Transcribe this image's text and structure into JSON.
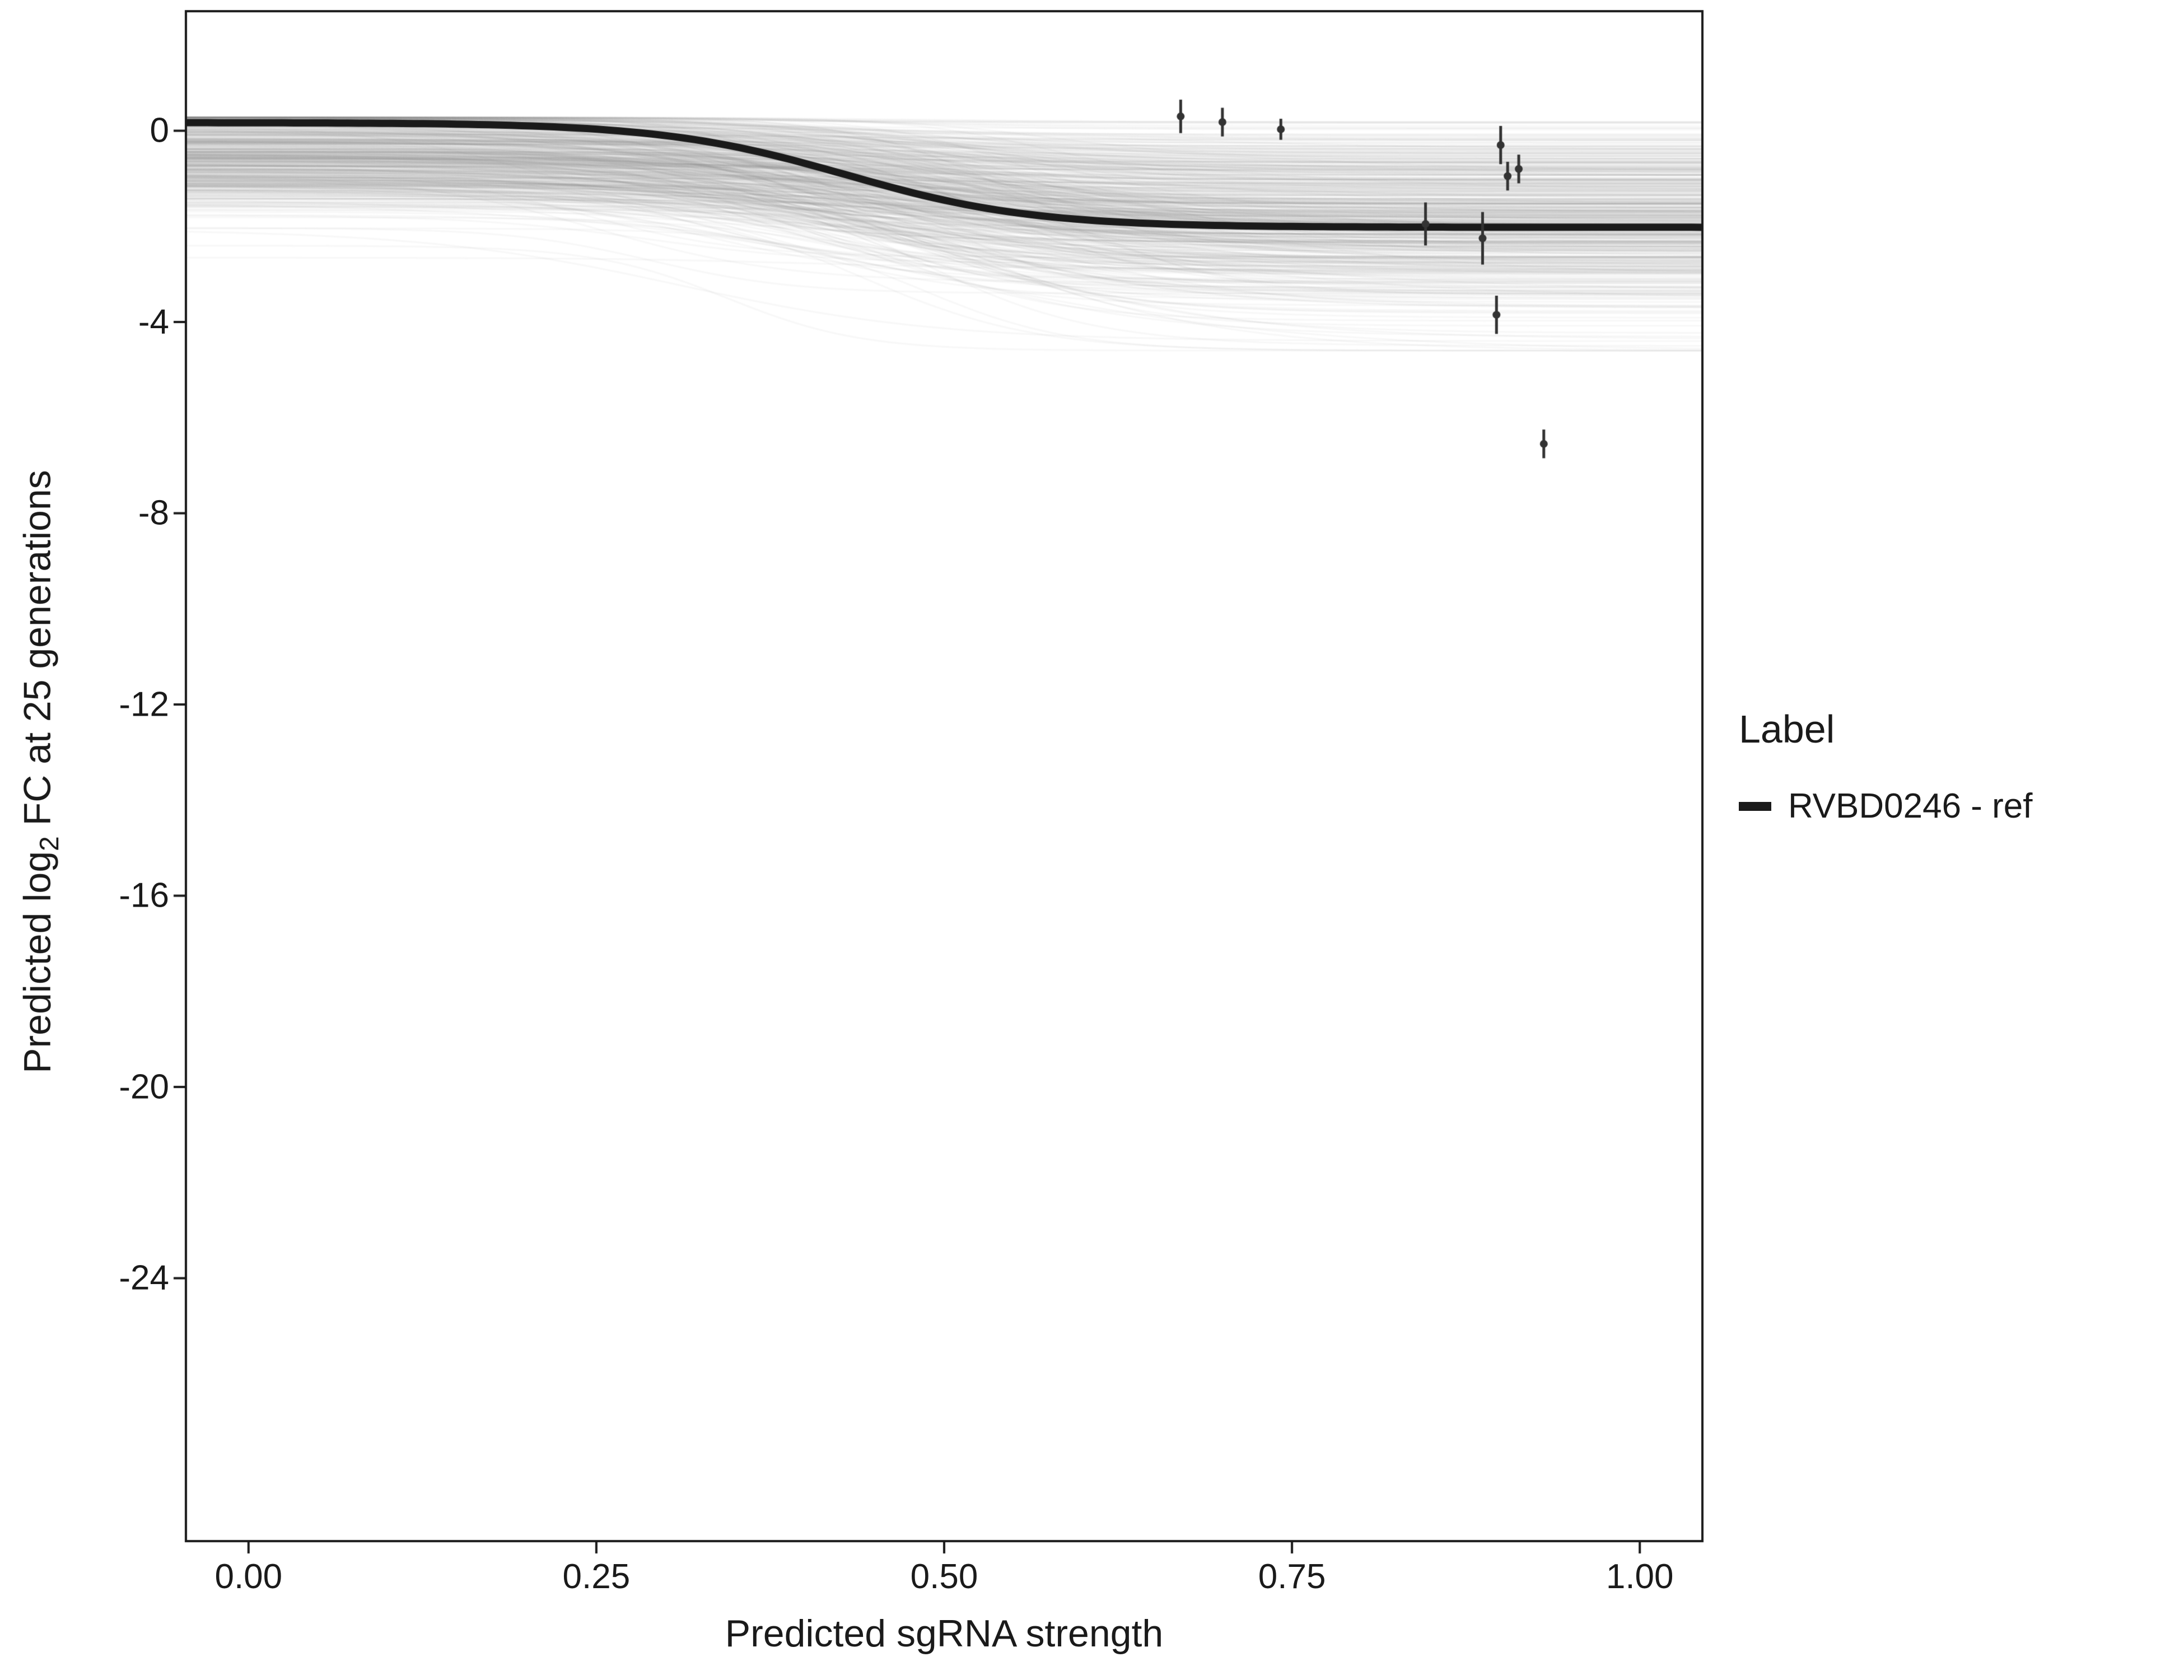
{
  "chart_data": {
    "type": "line",
    "title": "",
    "xlabel": "Predicted sgRNA strength",
    "ylabel": "Predicted log2 FC at 25 generations",
    "ylabel_parts": {
      "prefix": "Predicted log",
      "sub": "2",
      "suffix": " FC at 25 generations"
    },
    "x_ticks": [
      "0.00",
      "0.25",
      "0.50",
      "0.75",
      "1.00"
    ],
    "x_tick_values": [
      0,
      0.25,
      0.5,
      0.75,
      1
    ],
    "y_ticks": [
      "0",
      "-4",
      "-8",
      "-12",
      "-16",
      "-20",
      "-24"
    ],
    "y_tick_values": [
      0,
      -4,
      -8,
      -12,
      -16,
      -20,
      -24
    ],
    "xlim": [
      -0.045,
      1.045
    ],
    "ylim": [
      -29.5,
      2.5
    ],
    "grid": false,
    "legend": {
      "title": "Label",
      "position": "right",
      "entries": [
        {
          "label": "RVBD0246 - ref",
          "color": "#1a1a1a"
        }
      ]
    },
    "main_curve": {
      "upper": 0.17,
      "lower": -2.02,
      "midpoint": 0.43,
      "steepness": 15,
      "line_width": 13,
      "color": "#1a1a1a"
    },
    "ensemble": {
      "count": 520,
      "seed": 7,
      "alpha": 0.06,
      "line_width": 3,
      "upper_mean": -0.5,
      "upper_sd": 0.6,
      "upper_min": -2.7,
      "upper_max": 0.28,
      "drop_mean": 1.35,
      "drop_sd": 0.85,
      "drop_min": 0.1,
      "drop_max": 3.8,
      "lower_min": -4.6,
      "mid_mean": 0.45,
      "mid_sd": 0.07,
      "k_mean": 14,
      "k_sd": 4,
      "k_min": 7,
      "k_max": 26
    },
    "points": [
      {
        "x": 0.67,
        "y": 0.3,
        "err": 0.35
      },
      {
        "x": 0.7,
        "y": 0.18,
        "err": 0.3
      },
      {
        "x": 0.742,
        "y": 0.03,
        "err": 0.22
      },
      {
        "x": 0.846,
        "y": -1.95,
        "err": 0.45
      },
      {
        "x": 0.887,
        "y": -2.25,
        "err": 0.55
      },
      {
        "x": 0.9,
        "y": -0.3,
        "err": 0.4
      },
      {
        "x": 0.905,
        "y": -0.95,
        "err": 0.3
      },
      {
        "x": 0.913,
        "y": -0.8,
        "err": 0.3
      },
      {
        "x": 0.897,
        "y": -3.85,
        "err": 0.4
      },
      {
        "x": 0.931,
        "y": -6.55,
        "err": 0.3
      }
    ],
    "points_style": {
      "color": "#333333",
      "radius": 7,
      "err_width": 5
    },
    "colors": {
      "axis": "#1a1a1a",
      "text": "#1a1a1a",
      "ensemble": "#8a8a8a",
      "background": "#ffffff"
    }
  }
}
